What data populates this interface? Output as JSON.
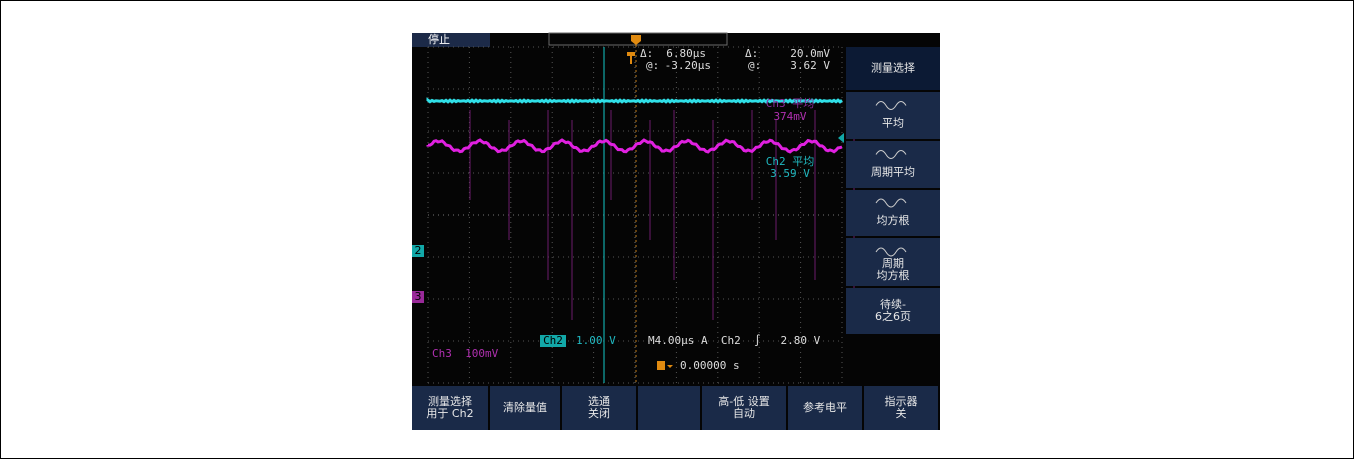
{
  "status": "停止",
  "cursor": {
    "delta_t_label": "Δ:",
    "delta_t": "6.80µs",
    "at_t_label": "@:",
    "at_t": "-3.20µs",
    "delta_v_label": "Δ:",
    "delta_v": "20.0mV",
    "at_v_label": "@:",
    "at_v": "3.62 V"
  },
  "measurements": [
    {
      "label": "Ch3 平均",
      "value": "374mV"
    },
    {
      "label": "Ch2 平均",
      "value": "3.59 V"
    }
  ],
  "channel_markers": [
    "2",
    "3"
  ],
  "readout": {
    "ch2_name": "Ch2",
    "ch2_scale": "1.00 V",
    "timebase": "M4.00µs A  Ch2  ∫   2.80 V",
    "ch3": "Ch3  100mV",
    "trigger_position": "0.00000 s"
  },
  "side_menu": [
    {
      "lines": [
        "测量选择"
      ]
    },
    {
      "lines": [
        "平均"
      ]
    },
    {
      "lines": [
        "周期平均"
      ]
    },
    {
      "lines": [
        "均方根"
      ]
    },
    {
      "lines": [
        "周期",
        "均方根"
      ]
    },
    {
      "lines": [
        "待续-",
        "6之6页"
      ]
    }
  ],
  "bottom_menu": [
    {
      "lines": [
        "测量选择",
        "用于 Ch2"
      ]
    },
    {
      "lines": [
        "清除量值"
      ]
    },
    {
      "lines": [
        "选通",
        "关闭"
      ]
    },
    {
      "lines": []
    },
    {
      "lines": [
        "高-低 设置",
        "自动"
      ]
    },
    {
      "lines": [
        "参考电平"
      ]
    },
    {
      "lines": [
        "指示器",
        "关"
      ]
    }
  ]
}
